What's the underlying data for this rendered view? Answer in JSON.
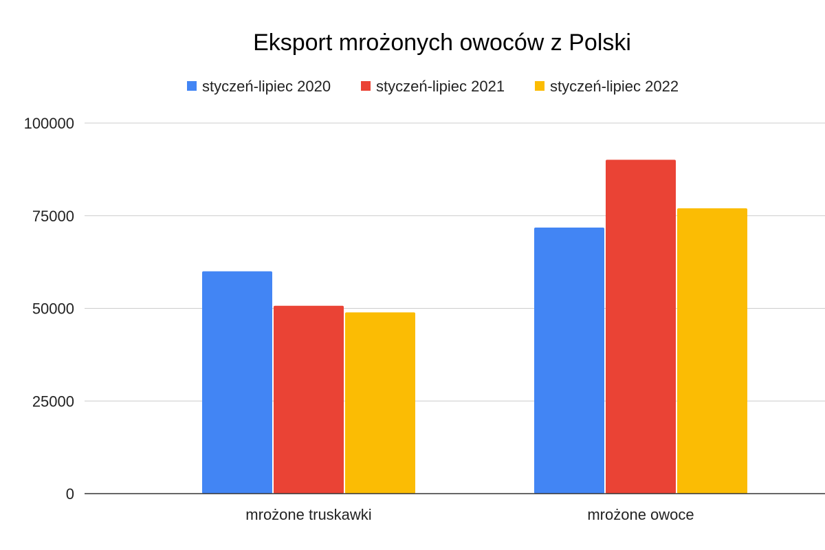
{
  "chart_data": {
    "type": "bar",
    "title": "Eksport mrożonych owoców z Polski",
    "xlabel": "",
    "ylabel": "",
    "categories": [
      "mrożone truskawki",
      "mrożone owoce"
    ],
    "series": [
      {
        "name": "styczeń-lipiec 2020",
        "color": "#4285F4",
        "values": [
          60000,
          71800
        ]
      },
      {
        "name": "styczeń-lipiec 2021",
        "color": "#EA4335",
        "values": [
          50700,
          90100
        ]
      },
      {
        "name": "styczeń-lipiec 2022",
        "color": "#FBBC04",
        "values": [
          48900,
          77000
        ]
      }
    ],
    "ylim": [
      0,
      100000
    ],
    "yticks": [
      0,
      25000,
      50000,
      75000,
      100000
    ],
    "ytick_labels": [
      "0",
      "25000",
      "50000",
      "75000",
      "100000"
    ],
    "grid": true,
    "legend_position": "top-center"
  }
}
